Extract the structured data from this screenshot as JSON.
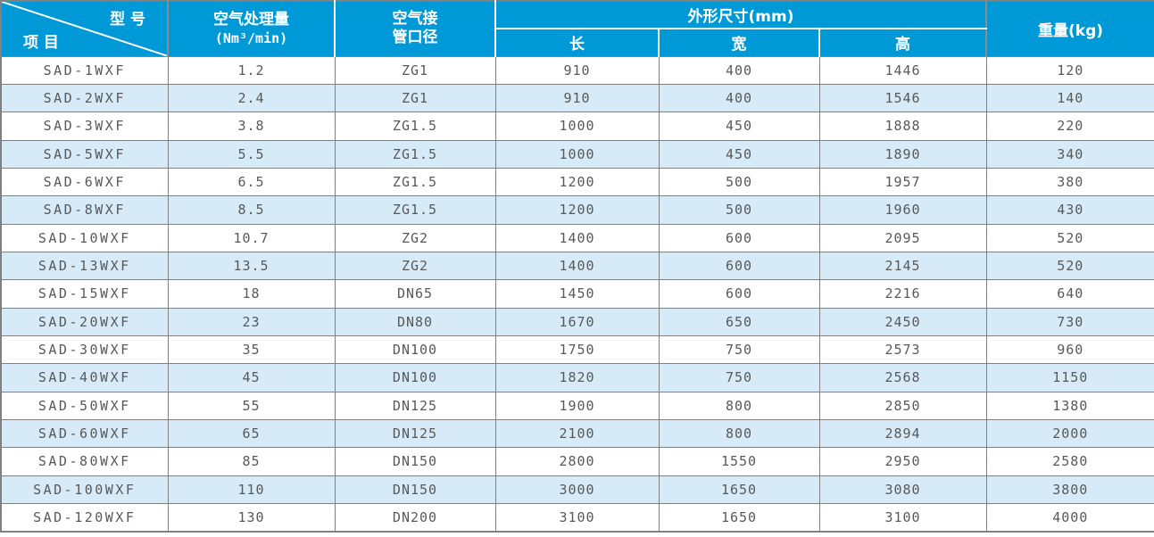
{
  "table": {
    "header": {
      "corner_top_right": "型 号",
      "corner_bottom_left": "项 目",
      "capacity_line1": "空气处理量",
      "capacity_line2": "(Nm³/min)",
      "pipe_line1": "空气接",
      "pipe_line2": "管口径",
      "dimensions": "外形尺寸(mm)",
      "sub_length": "长",
      "sub_width": "宽",
      "sub_height": "高",
      "weight": "重量(kg)"
    },
    "rows": [
      {
        "model": "SAD-1WXF",
        "capacity": "1.2",
        "pipe": "ZG1",
        "length": "910",
        "width": "400",
        "height": "1446",
        "weight": "120"
      },
      {
        "model": "SAD-2WXF",
        "capacity": "2.4",
        "pipe": "ZG1",
        "length": "910",
        "width": "400",
        "height": "1546",
        "weight": "140"
      },
      {
        "model": "SAD-3WXF",
        "capacity": "3.8",
        "pipe": "ZG1.5",
        "length": "1000",
        "width": "450",
        "height": "1888",
        "weight": "220"
      },
      {
        "model": "SAD-5WXF",
        "capacity": "5.5",
        "pipe": "ZG1.5",
        "length": "1000",
        "width": "450",
        "height": "1890",
        "weight": "340"
      },
      {
        "model": "SAD-6WXF",
        "capacity": "6.5",
        "pipe": "ZG1.5",
        "length": "1200",
        "width": "500",
        "height": "1957",
        "weight": "380"
      },
      {
        "model": "SAD-8WXF",
        "capacity": "8.5",
        "pipe": "ZG1.5",
        "length": "1200",
        "width": "500",
        "height": "1960",
        "weight": "430"
      },
      {
        "model": "SAD-10WXF",
        "capacity": "10.7",
        "pipe": "ZG2",
        "length": "1400",
        "width": "600",
        "height": "2095",
        "weight": "520"
      },
      {
        "model": "SAD-13WXF",
        "capacity": "13.5",
        "pipe": "ZG2",
        "length": "1400",
        "width": "600",
        "height": "2145",
        "weight": "520"
      },
      {
        "model": "SAD-15WXF",
        "capacity": "18",
        "pipe": "DN65",
        "length": "1450",
        "width": "600",
        "height": "2216",
        "weight": "640"
      },
      {
        "model": "SAD-20WXF",
        "capacity": "23",
        "pipe": "DN80",
        "length": "1670",
        "width": "650",
        "height": "2450",
        "weight": "730"
      },
      {
        "model": "SAD-30WXF",
        "capacity": "35",
        "pipe": "DN100",
        "length": "1750",
        "width": "750",
        "height": "2573",
        "weight": "960"
      },
      {
        "model": "SAD-40WXF",
        "capacity": "45",
        "pipe": "DN100",
        "length": "1820",
        "width": "750",
        "height": "2568",
        "weight": "1150"
      },
      {
        "model": "SAD-50WXF",
        "capacity": "55",
        "pipe": "DN125",
        "length": "1900",
        "width": "800",
        "height": "2850",
        "weight": "1380"
      },
      {
        "model": "SAD-60WXF",
        "capacity": "65",
        "pipe": "DN125",
        "length": "2100",
        "width": "800",
        "height": "2894",
        "weight": "2000"
      },
      {
        "model": "SAD-80WXF",
        "capacity": "85",
        "pipe": "DN150",
        "length": "2800",
        "width": "1550",
        "height": "2950",
        "weight": "2580"
      },
      {
        "model": "SAD-100WXF",
        "capacity": "110",
        "pipe": "DN150",
        "length": "3000",
        "width": "1650",
        "height": "3080",
        "weight": "3800"
      },
      {
        "model": "SAD-120WXF",
        "capacity": "130",
        "pipe": "DN200",
        "length": "3100",
        "width": "1650",
        "height": "3100",
        "weight": "4000"
      }
    ],
    "colors": {
      "header_bg": "#0099d8",
      "row_alt": "#d6eaf8",
      "grid": "#808080",
      "header_text": "#ffffff",
      "body_text": "#595959"
    }
  }
}
